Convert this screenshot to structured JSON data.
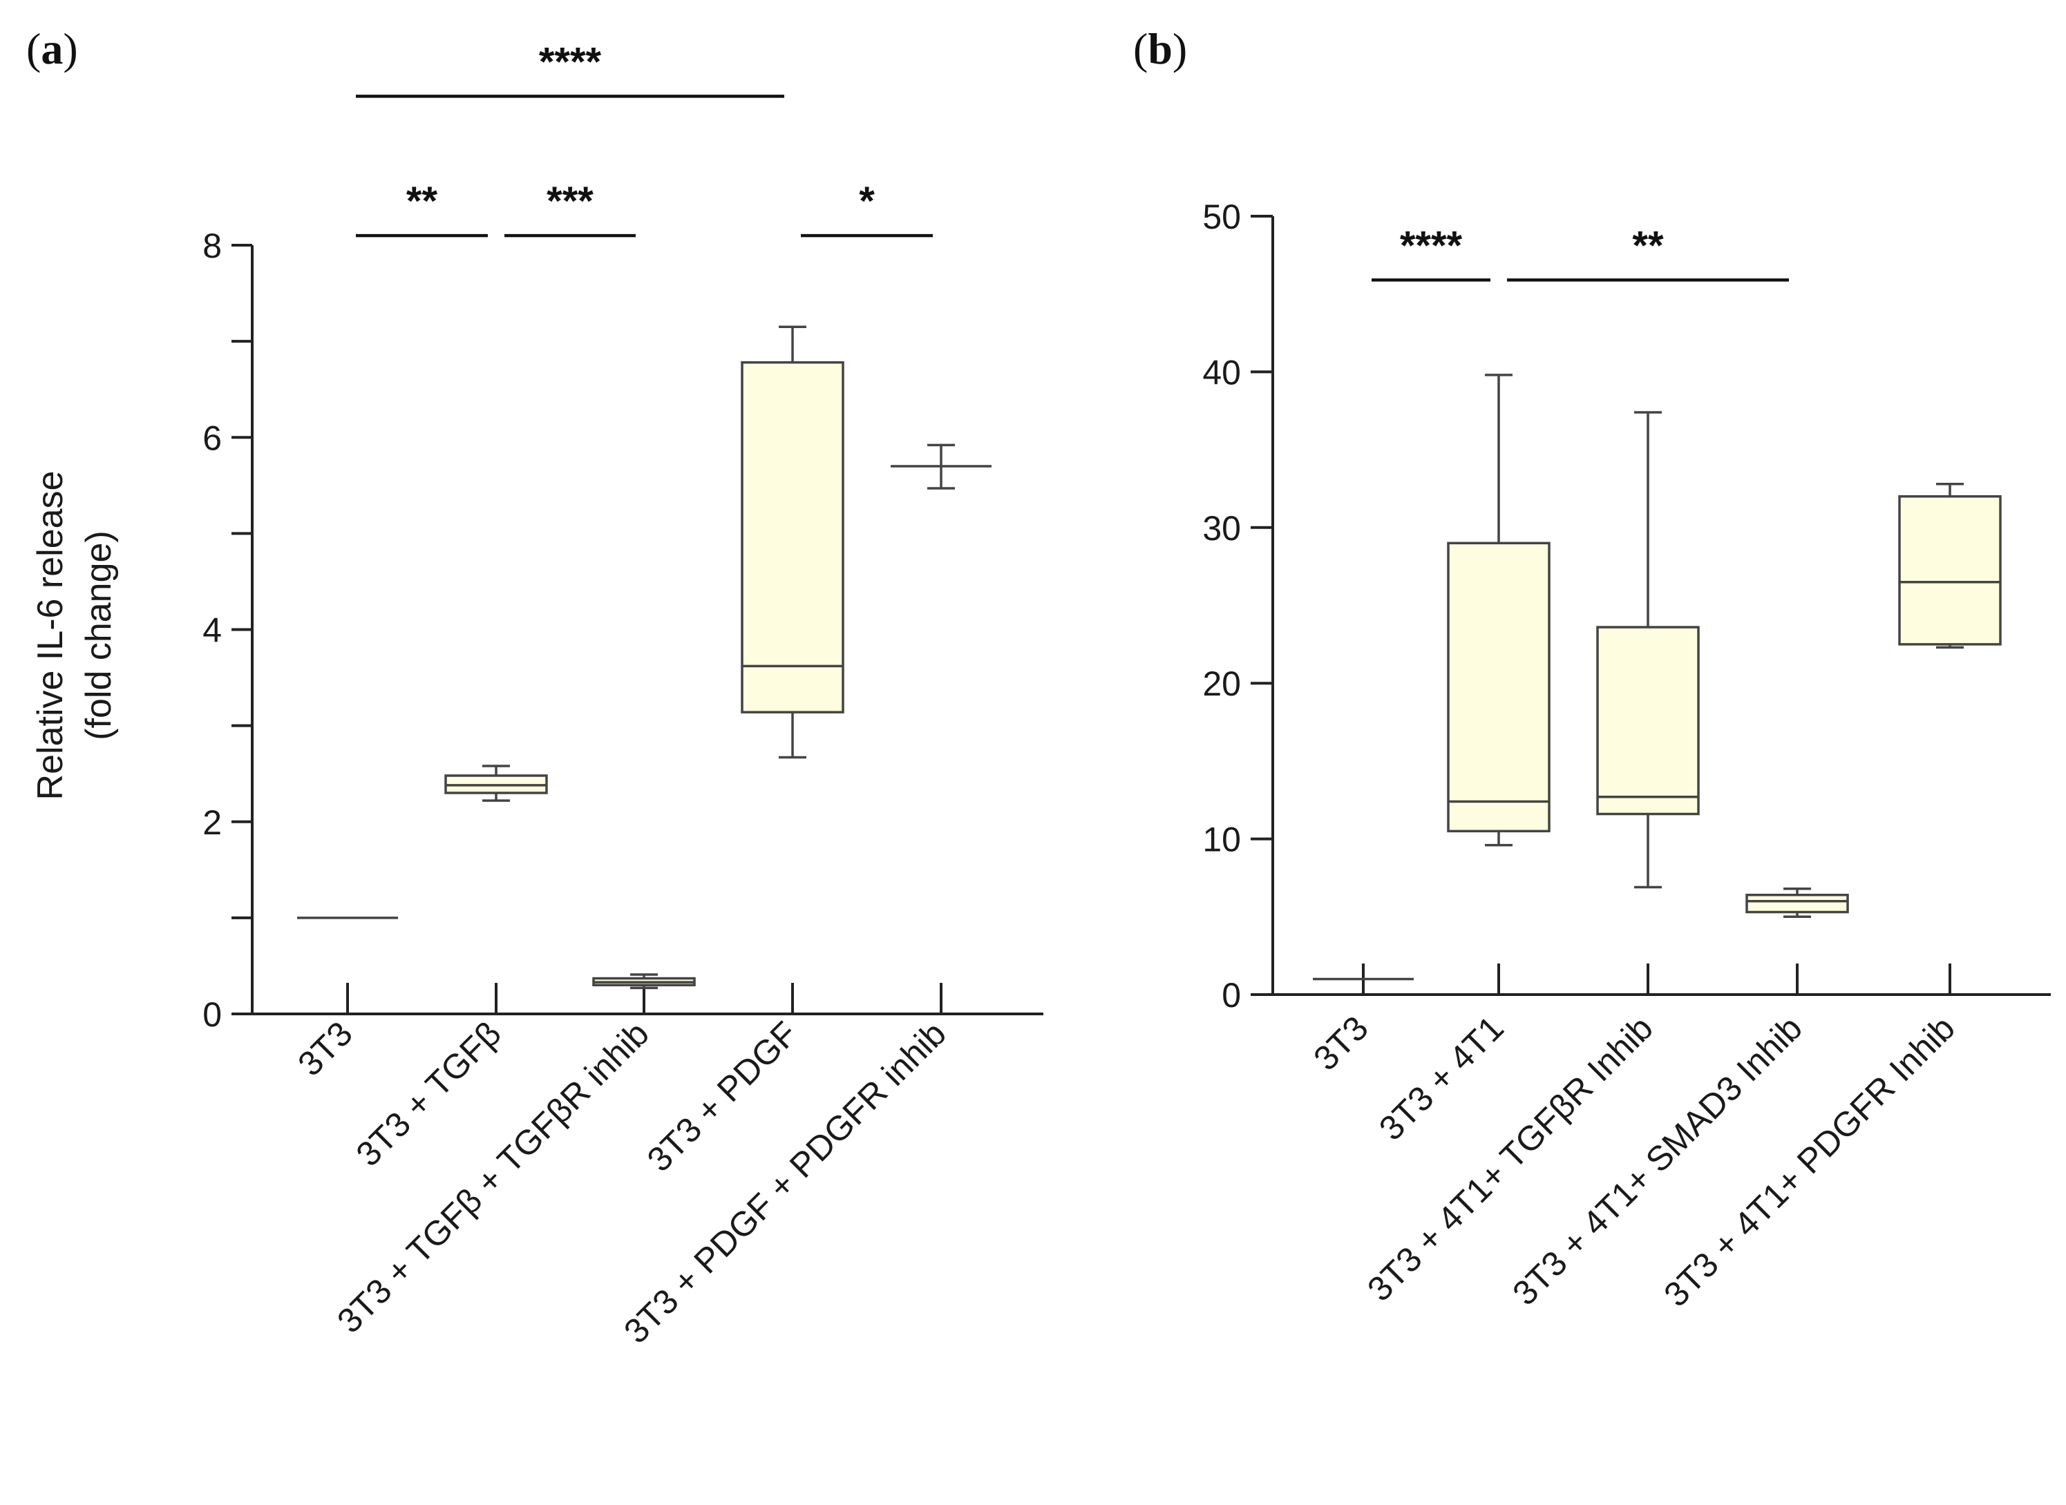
{
  "chart_data": [
    {
      "panel": "a",
      "panel_label": {
        "open": "(",
        "letter": "a",
        "close": ")"
      },
      "type": "box",
      "ylabel_lines": [
        "Relative IL-6 release",
        "(fold change)"
      ],
      "xlabel": "",
      "ylim": [
        0,
        8
      ],
      "yticks_major": [
        0,
        2,
        4,
        6,
        8
      ],
      "yticks_minor": [
        1,
        3,
        5,
        7
      ],
      "categories": [
        "3T3",
        "3T3 + TGFβ",
        "3T3 + TGFβ + TGFβR inhib",
        "3T3 + PDGF",
        "3T3 + PDGF + PDGFR inhib"
      ],
      "box_color": "#fffde0",
      "boxes": [
        {
          "min": 1.0,
          "q1": 1.0,
          "median": 1.0,
          "q3": 1.0,
          "max": 1.0
        },
        {
          "min": 2.22,
          "q1": 2.3,
          "median": 2.38,
          "q3": 2.48,
          "max": 2.58
        },
        {
          "min": 0.27,
          "q1": 0.3,
          "median": 0.33,
          "q3": 0.37,
          "max": 0.41
        },
        {
          "min": 2.67,
          "q1": 3.14,
          "median": 3.62,
          "q3": 6.78,
          "max": 7.15
        },
        {
          "min": 5.47,
          "q1": 5.7,
          "median": 5.7,
          "q3": 5.7,
          "max": 5.92
        }
      ],
      "significance": [
        {
          "from": 1,
          "to": 2,
          "y": 8.1,
          "label": "**"
        },
        {
          "from": 2,
          "to": 3,
          "y": 8.1,
          "label": "***"
        },
        {
          "from": 4,
          "to": 5,
          "y": 8.1,
          "label": "*"
        },
        {
          "from": 1,
          "to": 4,
          "y": 9.55,
          "label": "****"
        }
      ]
    },
    {
      "panel": "b",
      "panel_label": {
        "open": "(",
        "letter": "b",
        "close": ")"
      },
      "type": "box",
      "ylabel_lines": [],
      "xlabel": "",
      "ylim": [
        0,
        50
      ],
      "yticks_major": [
        0,
        10,
        20,
        30,
        40,
        50
      ],
      "yticks_minor": [],
      "categories": [
        "3T3",
        "3T3 + 4T1",
        "3T3 + 4T1+ TGFβR Inhib",
        "3T3 + 4T1+ SMAD3 Inhib",
        "3T3 + 4T1+ PDGFR Inhib"
      ],
      "box_color": "#fffde0",
      "boxes": [
        {
          "min": 1.0,
          "q1": 1.0,
          "median": 1.0,
          "q3": 1.0,
          "max": 1.0
        },
        {
          "min": 9.6,
          "q1": 10.5,
          "median": 12.4,
          "q3": 29.0,
          "max": 39.8
        },
        {
          "min": 6.9,
          "q1": 11.6,
          "median": 12.7,
          "q3": 23.6,
          "max": 37.4
        },
        {
          "min": 5.0,
          "q1": 5.3,
          "median": 6.0,
          "q3": 6.4,
          "max": 6.8
        },
        {
          "min": 22.3,
          "q1": 22.5,
          "median": 26.5,
          "q3": 32.0,
          "max": 32.8
        }
      ],
      "significance": [
        {
          "from": 1,
          "to": 2,
          "y": 45.9,
          "label": "****"
        },
        {
          "from": 2,
          "to": 4,
          "y": 45.9,
          "label": "**"
        }
      ]
    }
  ]
}
